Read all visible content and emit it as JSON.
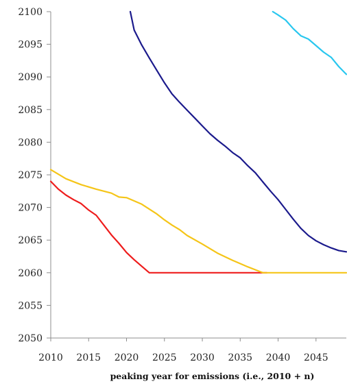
{
  "chart_data": {
    "type": "line",
    "title": "",
    "xlabel": "peaking year for emissions (i.e., 2010 + n)",
    "ylabel": "",
    "xlim": [
      2010,
      2049
    ],
    "ylim": [
      2050,
      2100
    ],
    "x_ticks": [
      "2010",
      "2015",
      "2020",
      "2025",
      "2030",
      "2035",
      "2040",
      "2045"
    ],
    "y_ticks": [
      "2050",
      "2055",
      "2060",
      "2065",
      "2070",
      "2075",
      "2080",
      "2085",
      "2090",
      "2095",
      "2100"
    ],
    "grid": false,
    "legend": "none",
    "series": [
      {
        "color": "#ee1c1c",
        "x": [
          2010,
          2011,
          2012,
          2013,
          2014,
          2015,
          2016,
          2017,
          2018,
          2019,
          2020,
          2021,
          2022,
          2023,
          2024,
          2026,
          2028,
          2030,
          2032,
          2034,
          2036,
          2038.5
        ],
        "y": [
          2074,
          2072.8,
          2071.9,
          2071.2,
          2070.6,
          2069.6,
          2068.8,
          2067.3,
          2065.8,
          2064.5,
          2063.1,
          2062,
          2061,
          2060,
          2060,
          2060,
          2060,
          2060,
          2060,
          2060,
          2060,
          2060
        ]
      },
      {
        "color": "#f5c518",
        "x": [
          2010,
          2012,
          2014,
          2016,
          2018,
          2019,
          2020,
          2022,
          2024,
          2025,
          2026,
          2027,
          2028,
          2030,
          2032,
          2034,
          2036,
          2038,
          2039,
          2042,
          2045,
          2049
        ],
        "y": [
          2075.8,
          2074.4,
          2073.5,
          2072.8,
          2072.2,
          2071.6,
          2071.5,
          2070.5,
          2069,
          2068.1,
          2067.3,
          2066.6,
          2065.7,
          2064.4,
          2063,
          2061.9,
          2060.9,
          2060,
          2060,
          2060,
          2060,
          2060
        ]
      },
      {
        "color": "#1b1a8c",
        "x": [
          2020.5,
          2021,
          2022,
          2023,
          2024,
          2025,
          2026,
          2027,
          2028,
          2029,
          2030,
          2031,
          2032,
          2033,
          2034,
          2035,
          2036,
          2037,
          2038,
          2039,
          2040,
          2041,
          2042,
          2043,
          2044,
          2045,
          2046,
          2047,
          2048,
          2049
        ],
        "y": [
          2100,
          2097.2,
          2094.9,
          2092.9,
          2091,
          2089.1,
          2087.4,
          2086.1,
          2084.9,
          2083.7,
          2082.5,
          2081.3,
          2080.3,
          2079.4,
          2078.4,
          2077.6,
          2076.4,
          2075.3,
          2073.9,
          2072.5,
          2071.2,
          2069.7,
          2068.2,
          2066.8,
          2065.7,
          2064.9,
          2064.3,
          2063.8,
          2063.4,
          2063.2
        ]
      },
      {
        "color": "#29c7ef",
        "x": [
          2039.3,
          2040,
          2041,
          2042,
          2043,
          2044,
          2045,
          2046,
          2047,
          2048,
          2049
        ],
        "y": [
          2100,
          2099.5,
          2098.7,
          2097.4,
          2096.3,
          2095.8,
          2094.8,
          2093.8,
          2093,
          2091.6,
          2090.4
        ]
      }
    ]
  }
}
